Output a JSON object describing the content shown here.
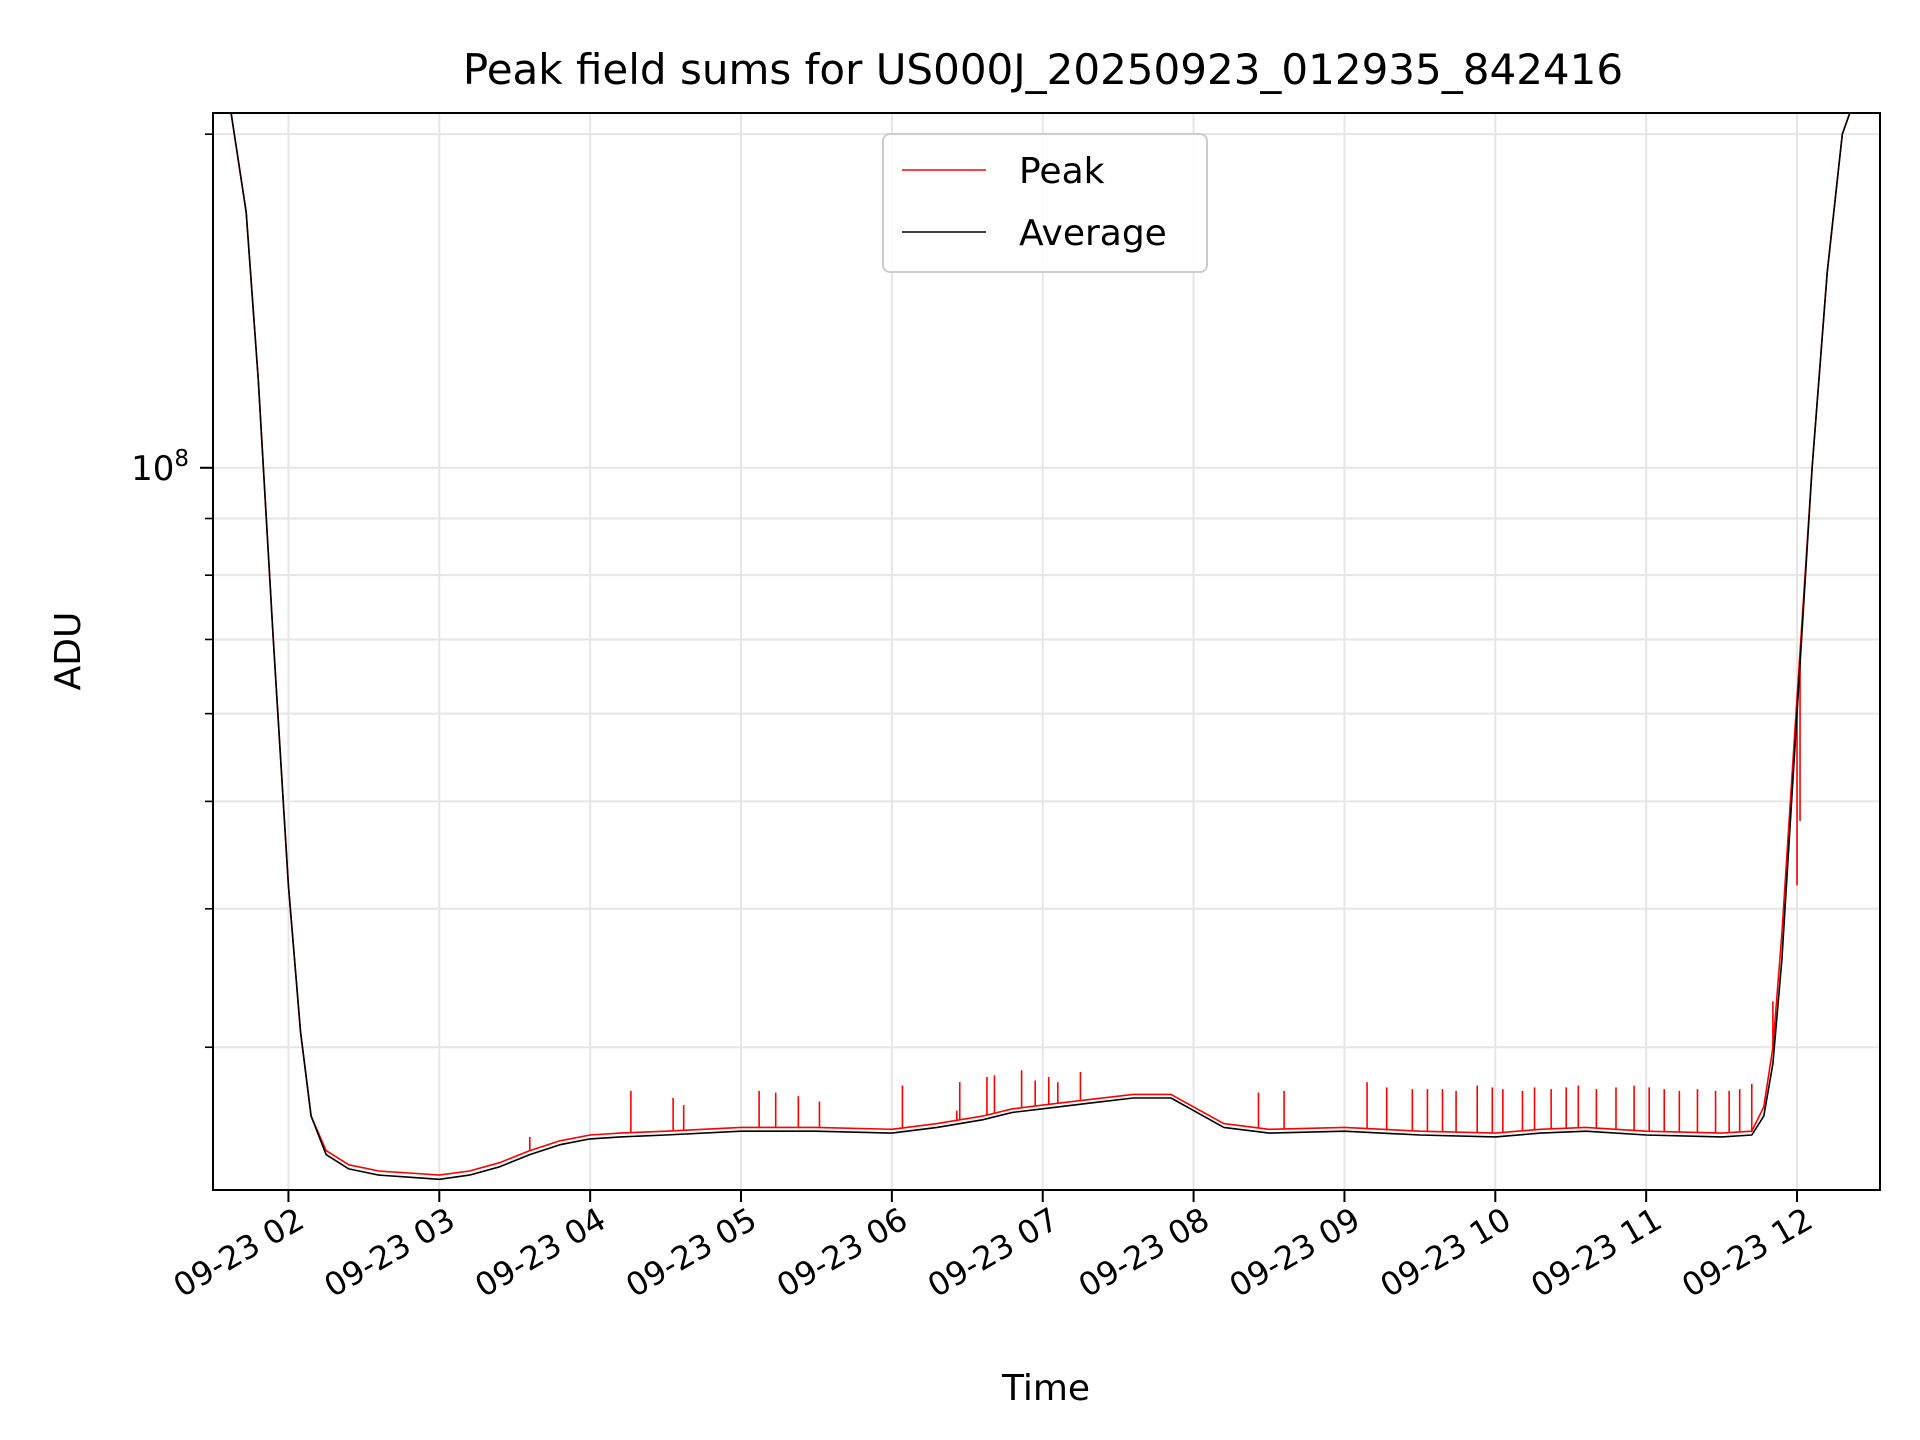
{
  "chart_data": {
    "type": "line",
    "title": "Peak field sums for US000J_20250923_012935_842416",
    "xlabel": "Time",
    "ylabel": "ADU",
    "yscale": "log",
    "ylim": [
      22300000,
      209000000
    ],
    "xlim": [
      1.5,
      12.55
    ],
    "x_ticks": [
      {
        "value": 2,
        "label": "09-23 02"
      },
      {
        "value": 3,
        "label": "09-23 03"
      },
      {
        "value": 4,
        "label": "09-23 04"
      },
      {
        "value": 5,
        "label": "09-23 05"
      },
      {
        "value": 6,
        "label": "09-23 06"
      },
      {
        "value": 7,
        "label": "09-23 07"
      },
      {
        "value": 8,
        "label": "09-23 08"
      },
      {
        "value": 9,
        "label": "09-23 09"
      },
      {
        "value": 10,
        "label": "09-23 10"
      },
      {
        "value": 11,
        "label": "09-23 11"
      },
      {
        "value": 12,
        "label": "09-23 12"
      }
    ],
    "y_major_ticks": [
      {
        "value": 100000000,
        "base": "10",
        "exp": "8"
      }
    ],
    "y_minor_ticks": [
      30000000,
      40000000,
      50000000,
      60000000,
      70000000,
      80000000,
      90000000,
      200000000
    ],
    "grid": true,
    "legend": {
      "position": "upper center",
      "entries": [
        "Peak",
        "Average"
      ]
    },
    "series": [
      {
        "name": "Average",
        "color": "#000000",
        "points": [
          [
            1.5,
            209000000
          ],
          [
            1.62,
            209000000
          ],
          [
            1.72,
            170000000
          ],
          [
            1.8,
            120000000
          ],
          [
            1.9,
            70000000
          ],
          [
            2.0,
            42000000
          ],
          [
            2.08,
            31000000
          ],
          [
            2.15,
            26000000
          ],
          [
            2.25,
            24000000
          ],
          [
            2.4,
            23300000
          ],
          [
            2.6,
            23000000
          ],
          [
            2.8,
            22900000
          ],
          [
            3.0,
            22800000
          ],
          [
            3.2,
            23000000
          ],
          [
            3.4,
            23400000
          ],
          [
            3.6,
            24000000
          ],
          [
            3.8,
            24500000
          ],
          [
            4.0,
            24800000
          ],
          [
            4.2,
            24900000
          ],
          [
            4.5,
            25000000
          ],
          [
            5.0,
            25200000
          ],
          [
            5.5,
            25200000
          ],
          [
            6.0,
            25100000
          ],
          [
            6.3,
            25400000
          ],
          [
            6.6,
            25800000
          ],
          [
            6.8,
            26200000
          ],
          [
            7.0,
            26400000
          ],
          [
            7.3,
            26700000
          ],
          [
            7.6,
            27000000
          ],
          [
            7.85,
            27000000
          ],
          [
            8.0,
            26300000
          ],
          [
            8.2,
            25400000
          ],
          [
            8.5,
            25100000
          ],
          [
            9.0,
            25200000
          ],
          [
            9.5,
            25000000
          ],
          [
            10.0,
            24900000
          ],
          [
            10.3,
            25100000
          ],
          [
            10.6,
            25200000
          ],
          [
            11.0,
            25000000
          ],
          [
            11.5,
            24900000
          ],
          [
            11.7,
            25000000
          ],
          [
            11.78,
            26000000
          ],
          [
            11.84,
            29000000
          ],
          [
            11.9,
            36000000
          ],
          [
            12.0,
            60000000
          ],
          [
            12.1,
            100000000
          ],
          [
            12.2,
            150000000
          ],
          [
            12.3,
            200000000
          ],
          [
            12.35,
            209000000
          ],
          [
            12.55,
            209000000
          ]
        ]
      },
      {
        "name": "Peak",
        "color": "#ff0000",
        "points": [
          [
            1.5,
            209000000
          ],
          [
            1.62,
            209000000
          ],
          [
            1.72,
            170000000
          ],
          [
            1.8,
            120000000
          ],
          [
            1.9,
            70000000
          ],
          [
            2.0,
            42000000
          ],
          [
            2.08,
            31000000
          ],
          [
            2.15,
            26000000
          ],
          [
            2.25,
            24200000
          ],
          [
            2.4,
            23500000
          ],
          [
            2.6,
            23200000
          ],
          [
            2.8,
            23100000
          ],
          [
            3.0,
            23000000
          ],
          [
            3.2,
            23200000
          ],
          [
            3.4,
            23600000
          ],
          [
            3.6,
            24200000
          ],
          [
            3.8,
            24700000
          ],
          [
            4.0,
            25000000
          ],
          [
            4.2,
            25100000
          ],
          [
            4.5,
            25200000
          ],
          [
            5.0,
            25400000
          ],
          [
            5.5,
            25400000
          ],
          [
            6.0,
            25300000
          ],
          [
            6.3,
            25600000
          ],
          [
            6.6,
            26000000
          ],
          [
            6.8,
            26400000
          ],
          [
            7.0,
            26600000
          ],
          [
            7.3,
            26900000
          ],
          [
            7.6,
            27200000
          ],
          [
            7.85,
            27200000
          ],
          [
            8.0,
            26500000
          ],
          [
            8.2,
            25600000
          ],
          [
            8.5,
            25300000
          ],
          [
            9.0,
            25400000
          ],
          [
            9.5,
            25200000
          ],
          [
            10.0,
            25100000
          ],
          [
            10.3,
            25300000
          ],
          [
            10.6,
            25400000
          ],
          [
            11.0,
            25200000
          ],
          [
            11.5,
            25100000
          ],
          [
            11.7,
            25200000
          ],
          [
            11.78,
            26500000
          ],
          [
            11.84,
            30000000
          ],
          [
            11.9,
            38000000
          ],
          [
            12.0,
            62000000
          ],
          [
            12.1,
            100000000
          ],
          [
            12.2,
            150000000
          ],
          [
            12.3,
            200000000
          ],
          [
            12.35,
            209000000
          ],
          [
            12.55,
            209000000
          ]
        ],
        "spikes": [
          [
            3.6,
            24900000
          ],
          [
            4.27,
            27400000
          ],
          [
            4.55,
            27000000
          ],
          [
            4.62,
            26600000
          ],
          [
            5.12,
            27400000
          ],
          [
            5.23,
            27300000
          ],
          [
            5.38,
            27100000
          ],
          [
            5.52,
            26800000
          ],
          [
            6.07,
            27700000
          ],
          [
            6.43,
            26300000
          ],
          [
            6.45,
            27900000
          ],
          [
            6.63,
            28200000
          ],
          [
            6.68,
            28300000
          ],
          [
            6.86,
            28600000
          ],
          [
            6.95,
            28000000
          ],
          [
            7.04,
            28200000
          ],
          [
            7.1,
            27900000
          ],
          [
            7.25,
            28500000
          ],
          [
            8.43,
            27300000
          ],
          [
            8.6,
            27400000
          ],
          [
            9.15,
            27900000
          ],
          [
            9.28,
            27600000
          ],
          [
            9.45,
            27500000
          ],
          [
            9.55,
            27500000
          ],
          [
            9.65,
            27500000
          ],
          [
            9.74,
            27400000
          ],
          [
            9.88,
            27700000
          ],
          [
            9.98,
            27600000
          ],
          [
            10.05,
            27500000
          ],
          [
            10.18,
            27400000
          ],
          [
            10.26,
            27600000
          ],
          [
            10.37,
            27500000
          ],
          [
            10.47,
            27600000
          ],
          [
            10.55,
            27700000
          ],
          [
            10.67,
            27500000
          ],
          [
            10.8,
            27600000
          ],
          [
            10.92,
            27700000
          ],
          [
            11.02,
            27600000
          ],
          [
            11.12,
            27500000
          ],
          [
            11.22,
            27400000
          ],
          [
            11.34,
            27500000
          ],
          [
            11.46,
            27400000
          ],
          [
            11.55,
            27400000
          ],
          [
            11.62,
            27500000
          ],
          [
            11.7,
            27800000
          ],
          [
            11.84,
            33000000
          ],
          [
            12.0,
            42000000
          ],
          [
            12.02,
            48000000
          ]
        ]
      }
    ]
  }
}
